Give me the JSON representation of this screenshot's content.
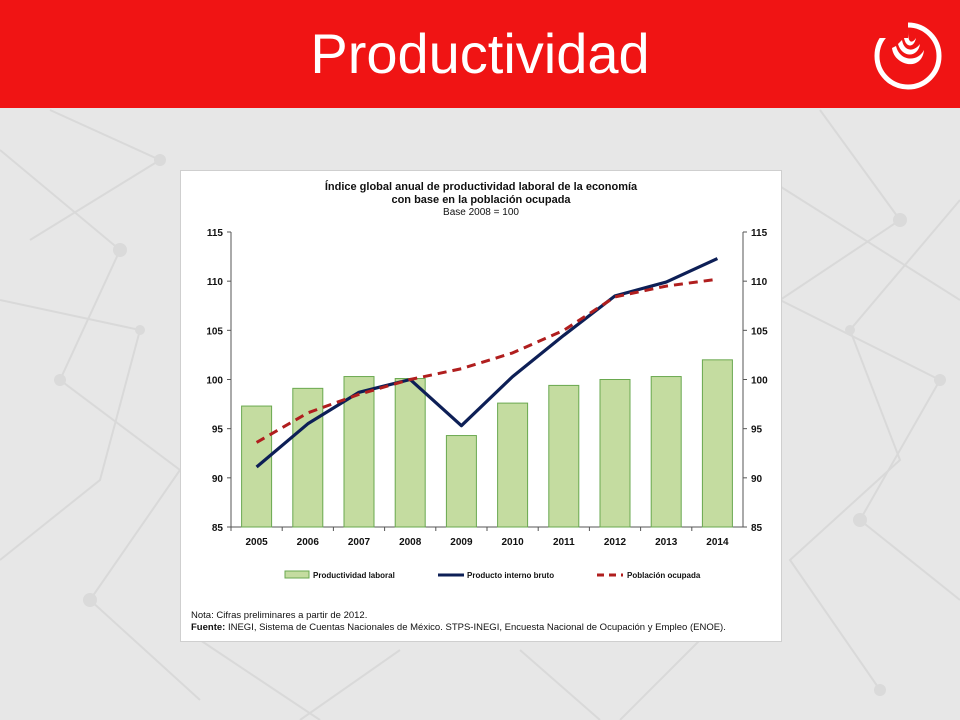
{
  "slide": {
    "title": "Productividad",
    "colors": {
      "header": "#f01414",
      "background": "#e7e7e7"
    },
    "logo_icon": "university-logo-icon"
  },
  "chart_data": {
    "type": "bar",
    "title": "Índice global anual de productividad laboral de la economía",
    "title_line2": "con base en la población ocupada",
    "subtitle": "Base 2008 = 100",
    "categories": [
      "2005",
      "2006",
      "2007",
      "2008",
      "2009",
      "2010",
      "2011",
      "2012",
      "2013",
      "2014"
    ],
    "ylim": [
      85,
      115
    ],
    "yticks": [
      115,
      110,
      105,
      100,
      95,
      90,
      85
    ],
    "secondary_axis": {
      "ylim": [
        85,
        115
      ],
      "yticks": [
        115,
        110,
        105,
        100,
        95,
        90,
        85
      ]
    },
    "grid": false,
    "legend_position": "bottom",
    "series": [
      {
        "name": "Productividad laboral",
        "type": "bar",
        "color": "#c4dca0",
        "values": [
          97.3,
          99.1,
          100.3,
          100.1,
          94.3,
          97.6,
          99.4,
          100.0,
          100.3,
          102.0
        ]
      },
      {
        "name": "Producto interno bruto",
        "type": "line",
        "color": "#0d1f56",
        "values": [
          91.1,
          95.5,
          98.7,
          100.0,
          95.3,
          100.3,
          104.5,
          108.5,
          109.9,
          112.3
        ]
      },
      {
        "name": "Población ocupada",
        "type": "line",
        "dashed": true,
        "color": "#b01e1e",
        "values": [
          93.6,
          96.6,
          98.5,
          100.0,
          101.1,
          102.7,
          105.0,
          108.4,
          109.5,
          110.2
        ]
      }
    ],
    "note": "Nota: Cifras preliminares a partir de 2012.",
    "source_label": "Fuente:",
    "source_text": " INEGI, Sistema de Cuentas Nacionales de México. STPS-INEGI,  Encuesta Nacional de Ocupación y Empleo (ENOE)."
  }
}
